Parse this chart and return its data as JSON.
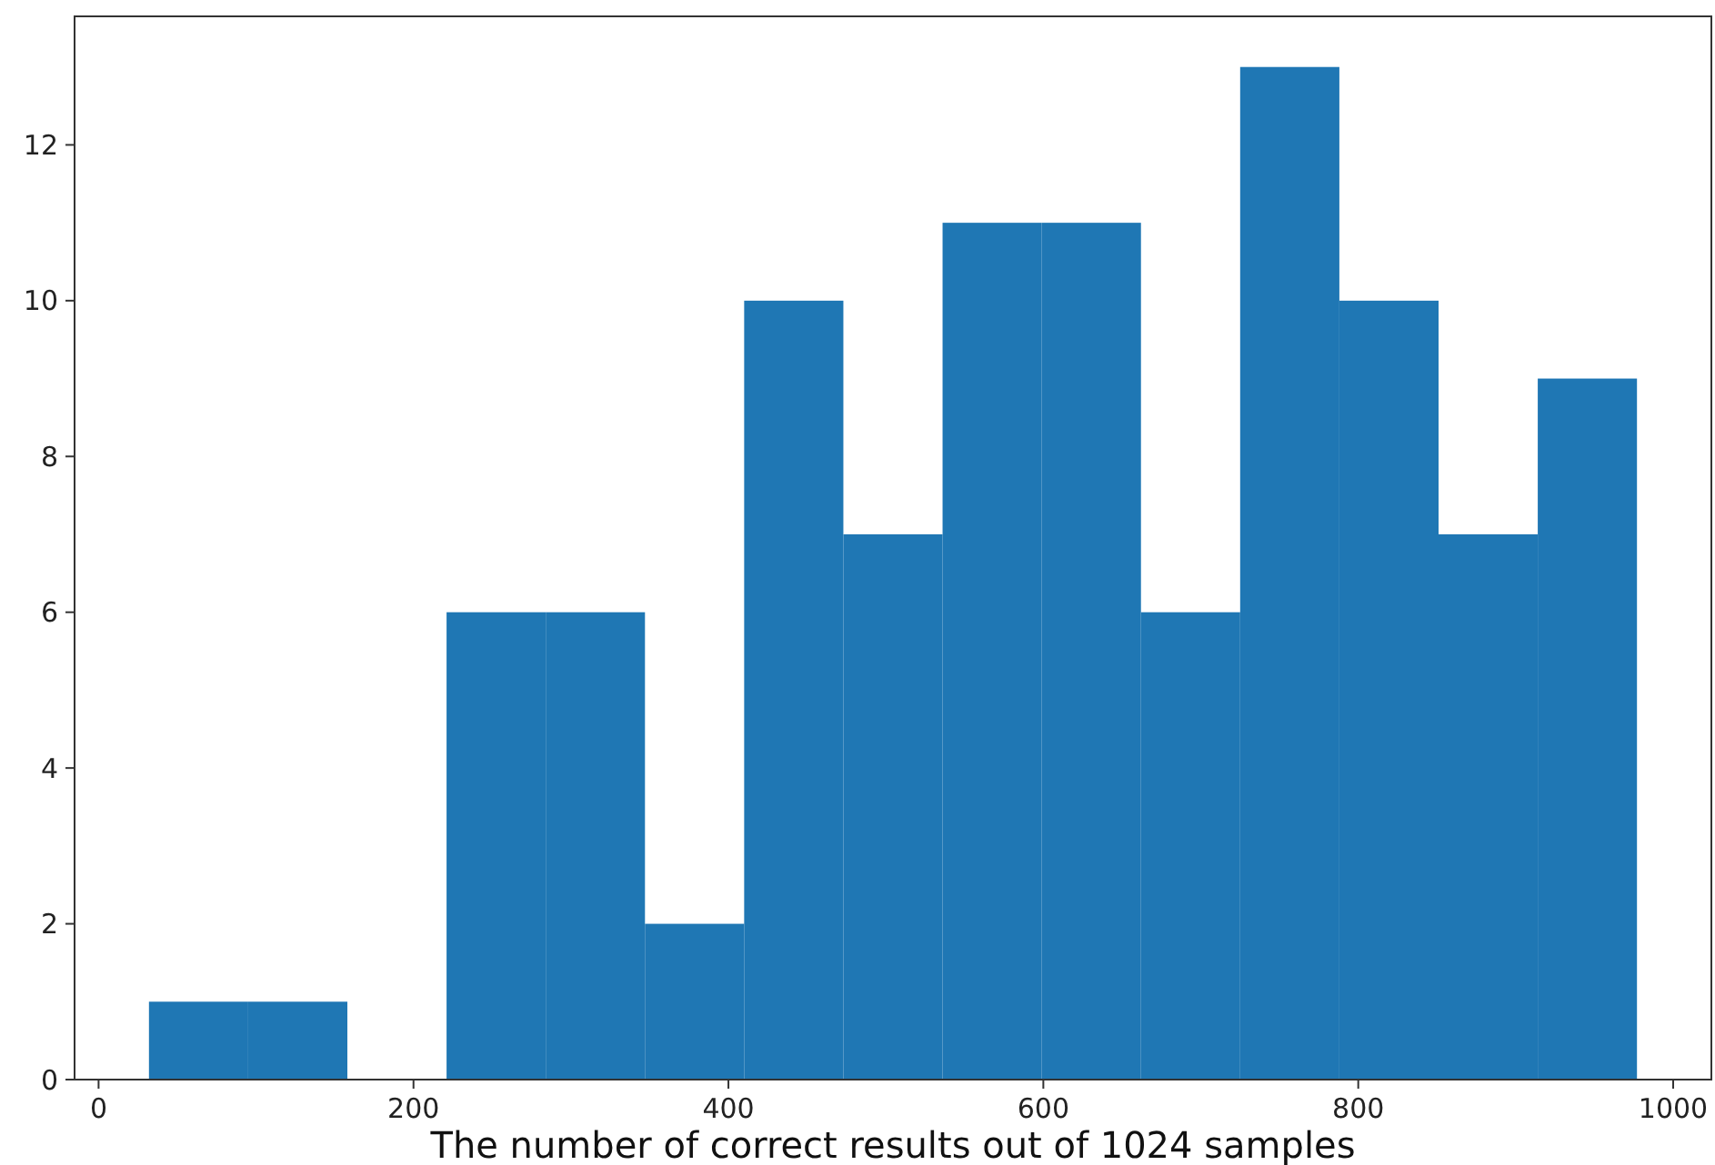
{
  "chart_data": {
    "type": "histogram",
    "xlabel": "The number of correct results out of 1024 samples",
    "bins": [
      32,
      95,
      158,
      221,
      284,
      347,
      410,
      473,
      536,
      599,
      662,
      725,
      788,
      851,
      914,
      977
    ],
    "values": [
      1,
      1,
      0,
      6,
      6,
      2,
      10,
      7,
      11,
      11,
      6,
      13,
      10,
      7,
      9
    ],
    "color": "#1f77b4",
    "xlim": [
      -15.25,
      1024.25
    ],
    "xticks": [
      0,
      200,
      400,
      600,
      800,
      1000
    ],
    "ylim": [
      0,
      13.65
    ],
    "yticks": [
      0,
      2,
      4,
      6,
      8,
      10,
      12
    ],
    "grid": false
  }
}
